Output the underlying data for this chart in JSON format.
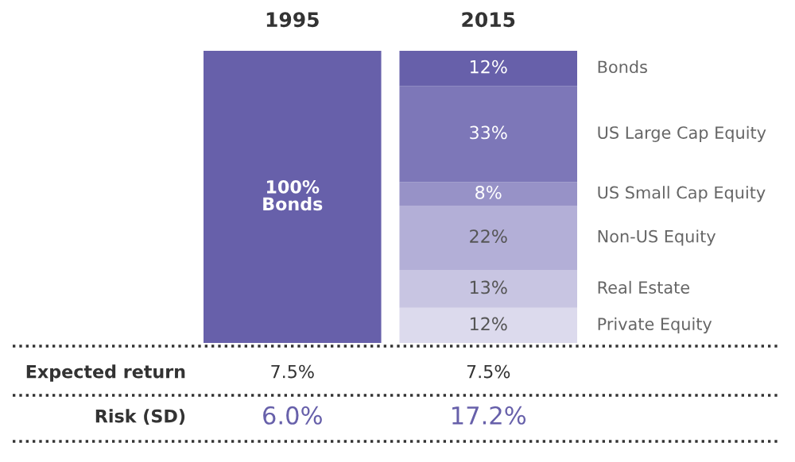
{
  "chart_data": {
    "type": "bar",
    "stacked": true,
    "tick_labels": "x",
    "grid": false,
    "categories": [
      "1995",
      "2015"
    ],
    "ylim": [
      0,
      100
    ],
    "series": [
      {
        "name": "Private Equity",
        "color": "#dcdaed",
        "values": [
          null,
          12
        ],
        "value_labels": [
          null,
          "12%"
        ]
      },
      {
        "name": "Real Estate",
        "color": "#c8c5e2",
        "values": [
          null,
          13
        ],
        "value_labels": [
          null,
          "13%"
        ]
      },
      {
        "name": "Non-US Equity",
        "color": "#b3afd7",
        "values": [
          null,
          22
        ],
        "value_labels": [
          null,
          "22%"
        ]
      },
      {
        "name": "US Small Cap Equity",
        "color": "#9792c7",
        "values": [
          null,
          8
        ],
        "value_labels": [
          null,
          "8%"
        ]
      },
      {
        "name": "US Large Cap Equity",
        "color": "#7d77b8",
        "values": [
          null,
          33
        ],
        "value_labels": [
          null,
          "33%"
        ]
      },
      {
        "name": "Bonds",
        "color": "#6760aa",
        "values": [
          100,
          12
        ],
        "value_labels": [
          "100%\nBonds",
          "12%"
        ]
      }
    ],
    "annotations": [
      "Expected return",
      "7.5%",
      "7.5%",
      "Risk (SD)",
      "6.0%",
      "17.2%"
    ]
  }
}
